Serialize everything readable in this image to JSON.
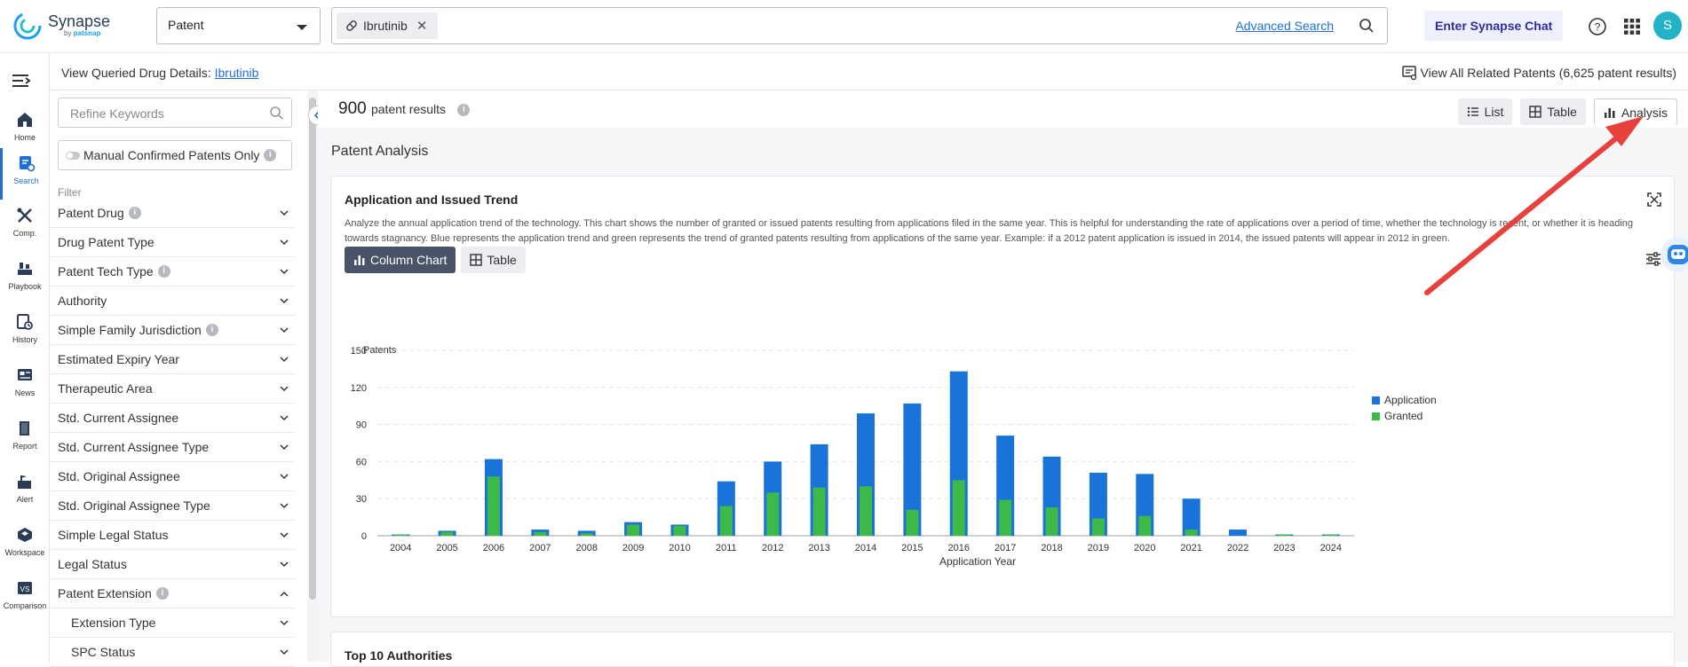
{
  "brand": {
    "name": "Synapse",
    "sub_prefix": "by ",
    "sub_brand": "patsnap"
  },
  "header": {
    "database": "Patent",
    "search_chip": "Ibrutinib",
    "advanced_search": "Advanced Search",
    "chat_button": "Enter Synapse Chat",
    "avatar_initial": "S"
  },
  "nav": {
    "items": [
      {
        "label": "Home",
        "icon": "home-icon"
      },
      {
        "label": "Search",
        "icon": "search-doc-icon",
        "active": true
      },
      {
        "label": "Comp.",
        "icon": "compare-tools-icon"
      },
      {
        "label": "Playbook",
        "icon": "playbook-icon"
      },
      {
        "label": "History",
        "icon": "history-icon"
      },
      {
        "label": "News",
        "icon": "news-icon"
      },
      {
        "label": "Report",
        "icon": "report-icon"
      },
      {
        "label": "Alert",
        "icon": "alert-icon"
      },
      {
        "label": "Workspace",
        "icon": "workspace-icon"
      },
      {
        "label": "Comparison",
        "icon": "comparison-icon"
      }
    ]
  },
  "subheader": {
    "query_label": "View Queried Drug Details:",
    "query_link": "Ibrutinib",
    "related": "View All Related Patents (6,625 patent results)"
  },
  "filters": {
    "refine_placeholder": "Refine Keywords",
    "manual_toggle": "Manual Confirmed Patents Only",
    "filter_label": "Filter",
    "items": [
      {
        "label": "Patent Drug",
        "info": true,
        "expanded": false,
        "sub": false
      },
      {
        "label": "Drug Patent Type",
        "info": false,
        "expanded": false,
        "sub": false
      },
      {
        "label": "Patent Tech Type",
        "info": true,
        "expanded": false,
        "sub": false
      },
      {
        "label": "Authority",
        "info": false,
        "expanded": false,
        "sub": false
      },
      {
        "label": "Simple Family Jurisdiction",
        "info": true,
        "expanded": false,
        "sub": false
      },
      {
        "label": "Estimated Expiry Year",
        "info": false,
        "expanded": false,
        "sub": false
      },
      {
        "label": "Therapeutic Area",
        "info": false,
        "expanded": false,
        "sub": false
      },
      {
        "label": "Std. Current Assignee",
        "info": false,
        "expanded": false,
        "sub": false
      },
      {
        "label": "Std. Current Assignee Type",
        "info": false,
        "expanded": false,
        "sub": false
      },
      {
        "label": "Std. Original Assignee",
        "info": false,
        "expanded": false,
        "sub": false
      },
      {
        "label": "Std. Original Assignee Type",
        "info": false,
        "expanded": false,
        "sub": false
      },
      {
        "label": "Simple Legal Status",
        "info": false,
        "expanded": false,
        "sub": false
      },
      {
        "label": "Legal Status",
        "info": false,
        "expanded": false,
        "sub": false
      },
      {
        "label": "Patent Extension",
        "info": true,
        "expanded": true,
        "sub": false
      },
      {
        "label": "Extension Type",
        "info": false,
        "expanded": false,
        "sub": true
      },
      {
        "label": "SPC Status",
        "info": false,
        "expanded": false,
        "sub": true
      }
    ]
  },
  "results": {
    "count": "900",
    "suffix": "patent results",
    "views": [
      "List",
      "Table",
      "Analysis"
    ],
    "active_view": "Analysis"
  },
  "analysis": {
    "section_title": "Patent Analysis",
    "card_title": "Application and Issued Trend",
    "card_desc": "Analyze the annual application trend of the technology. This chart shows the number of granted or issued patents resulting from applications filed in the same year. This is helpful for understanding the rate of applications over a period of time, whether the technology is recent, or whether it is heading towards stagnancy. Blue represents the application trend and green represents the trend of granted patents resulting from applications of the same year. Example: if a 2012 patent application is issued in 2014, the issued patents will appear in 2012 in green.",
    "chart_tabs": [
      "Column Chart",
      "Table"
    ],
    "next_card_title": "Top 10 Authorities"
  },
  "chart_data": {
    "type": "bar",
    "title": "",
    "xlabel": "Application Year",
    "ylabel": "Patents",
    "ylim": [
      0,
      150
    ],
    "yticks": [
      0,
      30,
      60,
      90,
      120,
      150
    ],
    "categories": [
      "2004",
      "2005",
      "2006",
      "2007",
      "2008",
      "2009",
      "2010",
      "2011",
      "2012",
      "2013",
      "2014",
      "2015",
      "2016",
      "2017",
      "2018",
      "2019",
      "2020",
      "2021",
      "2022",
      "2023",
      "2024"
    ],
    "series": [
      {
        "name": "Application",
        "color": "#1a73d9",
        "values": [
          1,
          4,
          62,
          5,
          4,
          11,
          9,
          44,
          60,
          74,
          99,
          107,
          133,
          81,
          64,
          51,
          50,
          30,
          5,
          1,
          1
        ]
      },
      {
        "name": "Granted",
        "color": "#3db94a",
        "values": [
          1,
          3,
          48,
          3,
          2,
          9,
          8,
          24,
          35,
          39,
          40,
          21,
          45,
          29,
          23,
          14,
          16,
          5,
          0,
          1,
          1
        ]
      }
    ],
    "legend_position": "right",
    "grid": true
  }
}
